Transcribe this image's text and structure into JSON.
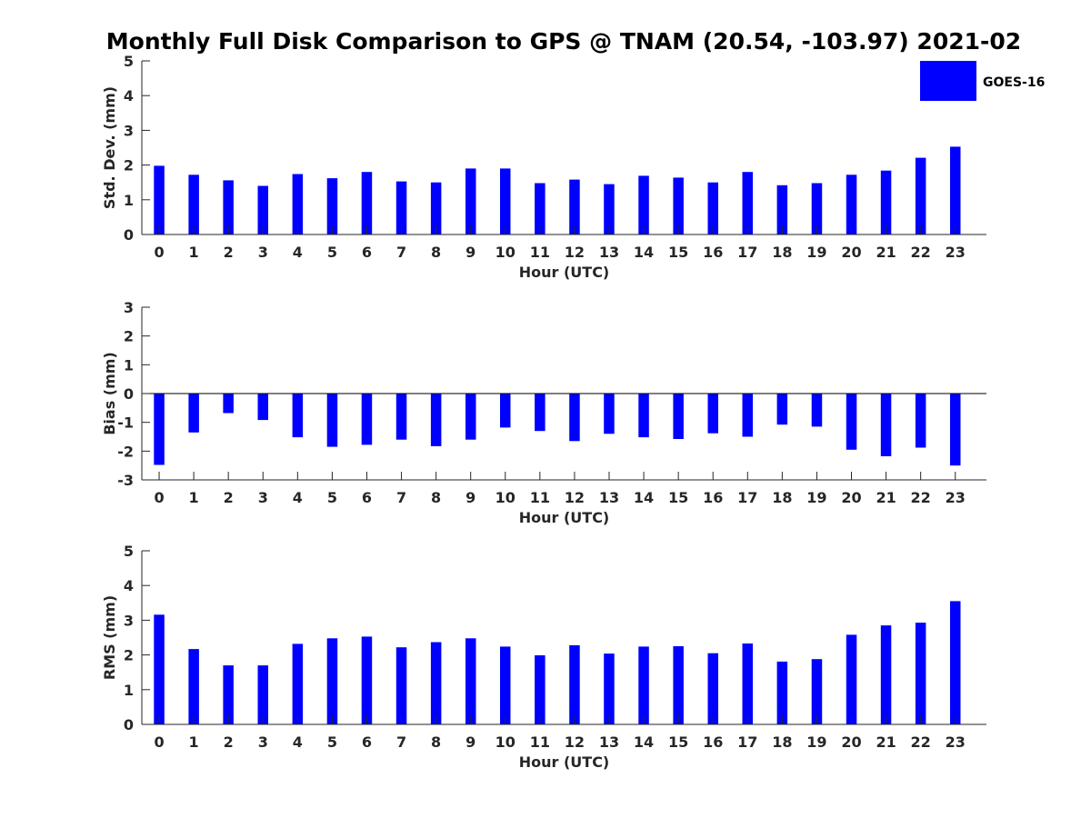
{
  "title": "Monthly Full Disk Comparison to GPS @ TNAM (20.54, -103.97) 2021-02",
  "legend": {
    "label": "GOES-16",
    "color": "#0000ff",
    "placement": "top-right"
  },
  "chart_data": [
    {
      "type": "bar",
      "xlabel": "Hour (UTC)",
      "ylabel": "Std. Dev. (mm)",
      "ylim": [
        0,
        5
      ],
      "yticks": [
        0,
        1,
        2,
        3,
        4,
        5
      ],
      "categories": [
        "0",
        "1",
        "2",
        "3",
        "4",
        "5",
        "6",
        "7",
        "8",
        "9",
        "10",
        "11",
        "12",
        "13",
        "14",
        "15",
        "16",
        "17",
        "18",
        "19",
        "20",
        "21",
        "22",
        "23"
      ],
      "series": [
        {
          "name": "GOES-16",
          "values": [
            1.98,
            1.72,
            1.56,
            1.4,
            1.74,
            1.62,
            1.8,
            1.53,
            1.5,
            1.9,
            1.9,
            1.48,
            1.58,
            1.45,
            1.69,
            1.64,
            1.5,
            1.8,
            1.42,
            1.48,
            1.72,
            1.84,
            2.21,
            2.53
          ]
        }
      ]
    },
    {
      "type": "bar",
      "xlabel": "Hour (UTC)",
      "ylabel": "Bias (mm)",
      "ylim": [
        -3,
        3
      ],
      "yticks": [
        -3,
        -2,
        -1,
        0,
        1,
        2,
        3
      ],
      "categories": [
        "0",
        "1",
        "2",
        "3",
        "4",
        "5",
        "6",
        "7",
        "8",
        "9",
        "10",
        "11",
        "12",
        "13",
        "14",
        "15",
        "16",
        "17",
        "18",
        "19",
        "20",
        "21",
        "22",
        "23"
      ],
      "series": [
        {
          "name": "GOES-16",
          "values": [
            -2.48,
            -1.35,
            -0.68,
            -0.92,
            -1.52,
            -1.85,
            -1.78,
            -1.6,
            -1.83,
            -1.6,
            -1.18,
            -1.3,
            -1.65,
            -1.4,
            -1.52,
            -1.58,
            -1.38,
            -1.5,
            -1.08,
            -1.15,
            -1.95,
            -2.18,
            -1.88,
            -2.5
          ]
        }
      ]
    },
    {
      "type": "bar",
      "xlabel": "Hour (UTC)",
      "ylabel": "RMS (mm)",
      "ylim": [
        0,
        5
      ],
      "yticks": [
        0,
        1,
        2,
        3,
        4,
        5
      ],
      "categories": [
        "0",
        "1",
        "2",
        "3",
        "4",
        "5",
        "6",
        "7",
        "8",
        "9",
        "10",
        "11",
        "12",
        "13",
        "14",
        "15",
        "16",
        "17",
        "18",
        "19",
        "20",
        "21",
        "22",
        "23"
      ],
      "series": [
        {
          "name": "GOES-16",
          "values": [
            3.16,
            2.17,
            1.7,
            1.7,
            2.32,
            2.48,
            2.53,
            2.22,
            2.37,
            2.48,
            2.24,
            1.99,
            2.28,
            2.04,
            2.24,
            2.25,
            2.05,
            2.33,
            1.81,
            1.88,
            2.58,
            2.85,
            2.93,
            3.55
          ]
        }
      ]
    }
  ]
}
